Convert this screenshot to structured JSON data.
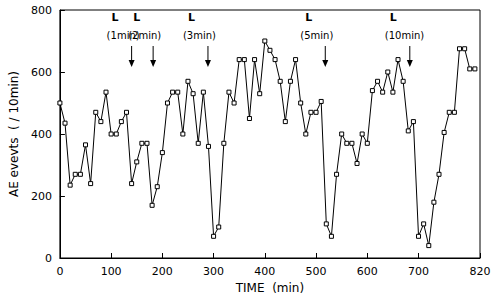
{
  "chart_data": {
    "type": "line",
    "x_label": "TIME  (min)",
    "y_label": "AE evevts  ( / 10min)",
    "x": [
      0,
      10,
      20,
      30,
      40,
      50,
      60,
      70,
      80,
      90,
      100,
      110,
      120,
      130,
      140,
      150,
      160,
      170,
      180,
      190,
      200,
      210,
      220,
      230,
      240,
      250,
      260,
      270,
      280,
      290,
      300,
      310,
      320,
      330,
      340,
      350,
      360,
      370,
      380,
      390,
      400,
      410,
      420,
      430,
      440,
      450,
      460,
      470,
      480,
      490,
      500,
      510,
      520,
      530,
      540,
      550,
      560,
      570,
      580,
      590,
      600,
      610,
      620,
      630,
      640,
      650,
      660,
      670,
      680,
      690,
      700,
      710,
      720,
      730,
      740,
      750,
      760,
      770,
      780,
      790,
      800,
      810
    ],
    "values": [
      500,
      435,
      235,
      270,
      270,
      365,
      240,
      470,
      440,
      535,
      400,
      400,
      440,
      470,
      240,
      310,
      370,
      370,
      170,
      230,
      340,
      500,
      535,
      535,
      400,
      570,
      530,
      370,
      535,
      360,
      70,
      100,
      370,
      535,
      500,
      640,
      640,
      450,
      640,
      530,
      700,
      670,
      640,
      570,
      440,
      570,
      640,
      500,
      400,
      470,
      470,
      505,
      110,
      70,
      270,
      400,
      370,
      370,
      305,
      400,
      370,
      540,
      570,
      535,
      600,
      535,
      640,
      570,
      410,
      440,
      70,
      110,
      40,
      180,
      270,
      405,
      470,
      470,
      675,
      675,
      610,
      610
    ],
    "color": "#000000",
    "marker": "square",
    "line_style": "solid",
    "xlim": [
      0,
      820
    ],
    "xticks": [
      0,
      100,
      200,
      300,
      400,
      500,
      600,
      700,
      800
    ],
    "ylim": [
      0,
      800
    ],
    "yticks": [
      0,
      200,
      400,
      600,
      800
    ],
    "grid": false,
    "annotations": [
      {
        "x": 140,
        "label": "L",
        "text": "(1min)"
      },
      {
        "x": 182,
        "label": "L",
        "text": "(2min)"
      },
      {
        "x": 289,
        "label": "L",
        "text": "(3min)"
      },
      {
        "x": 518,
        "label": "L",
        "text": "(5min)"
      },
      {
        "x": 683,
        "label": "L",
        "text": "(10min)"
      }
    ]
  }
}
